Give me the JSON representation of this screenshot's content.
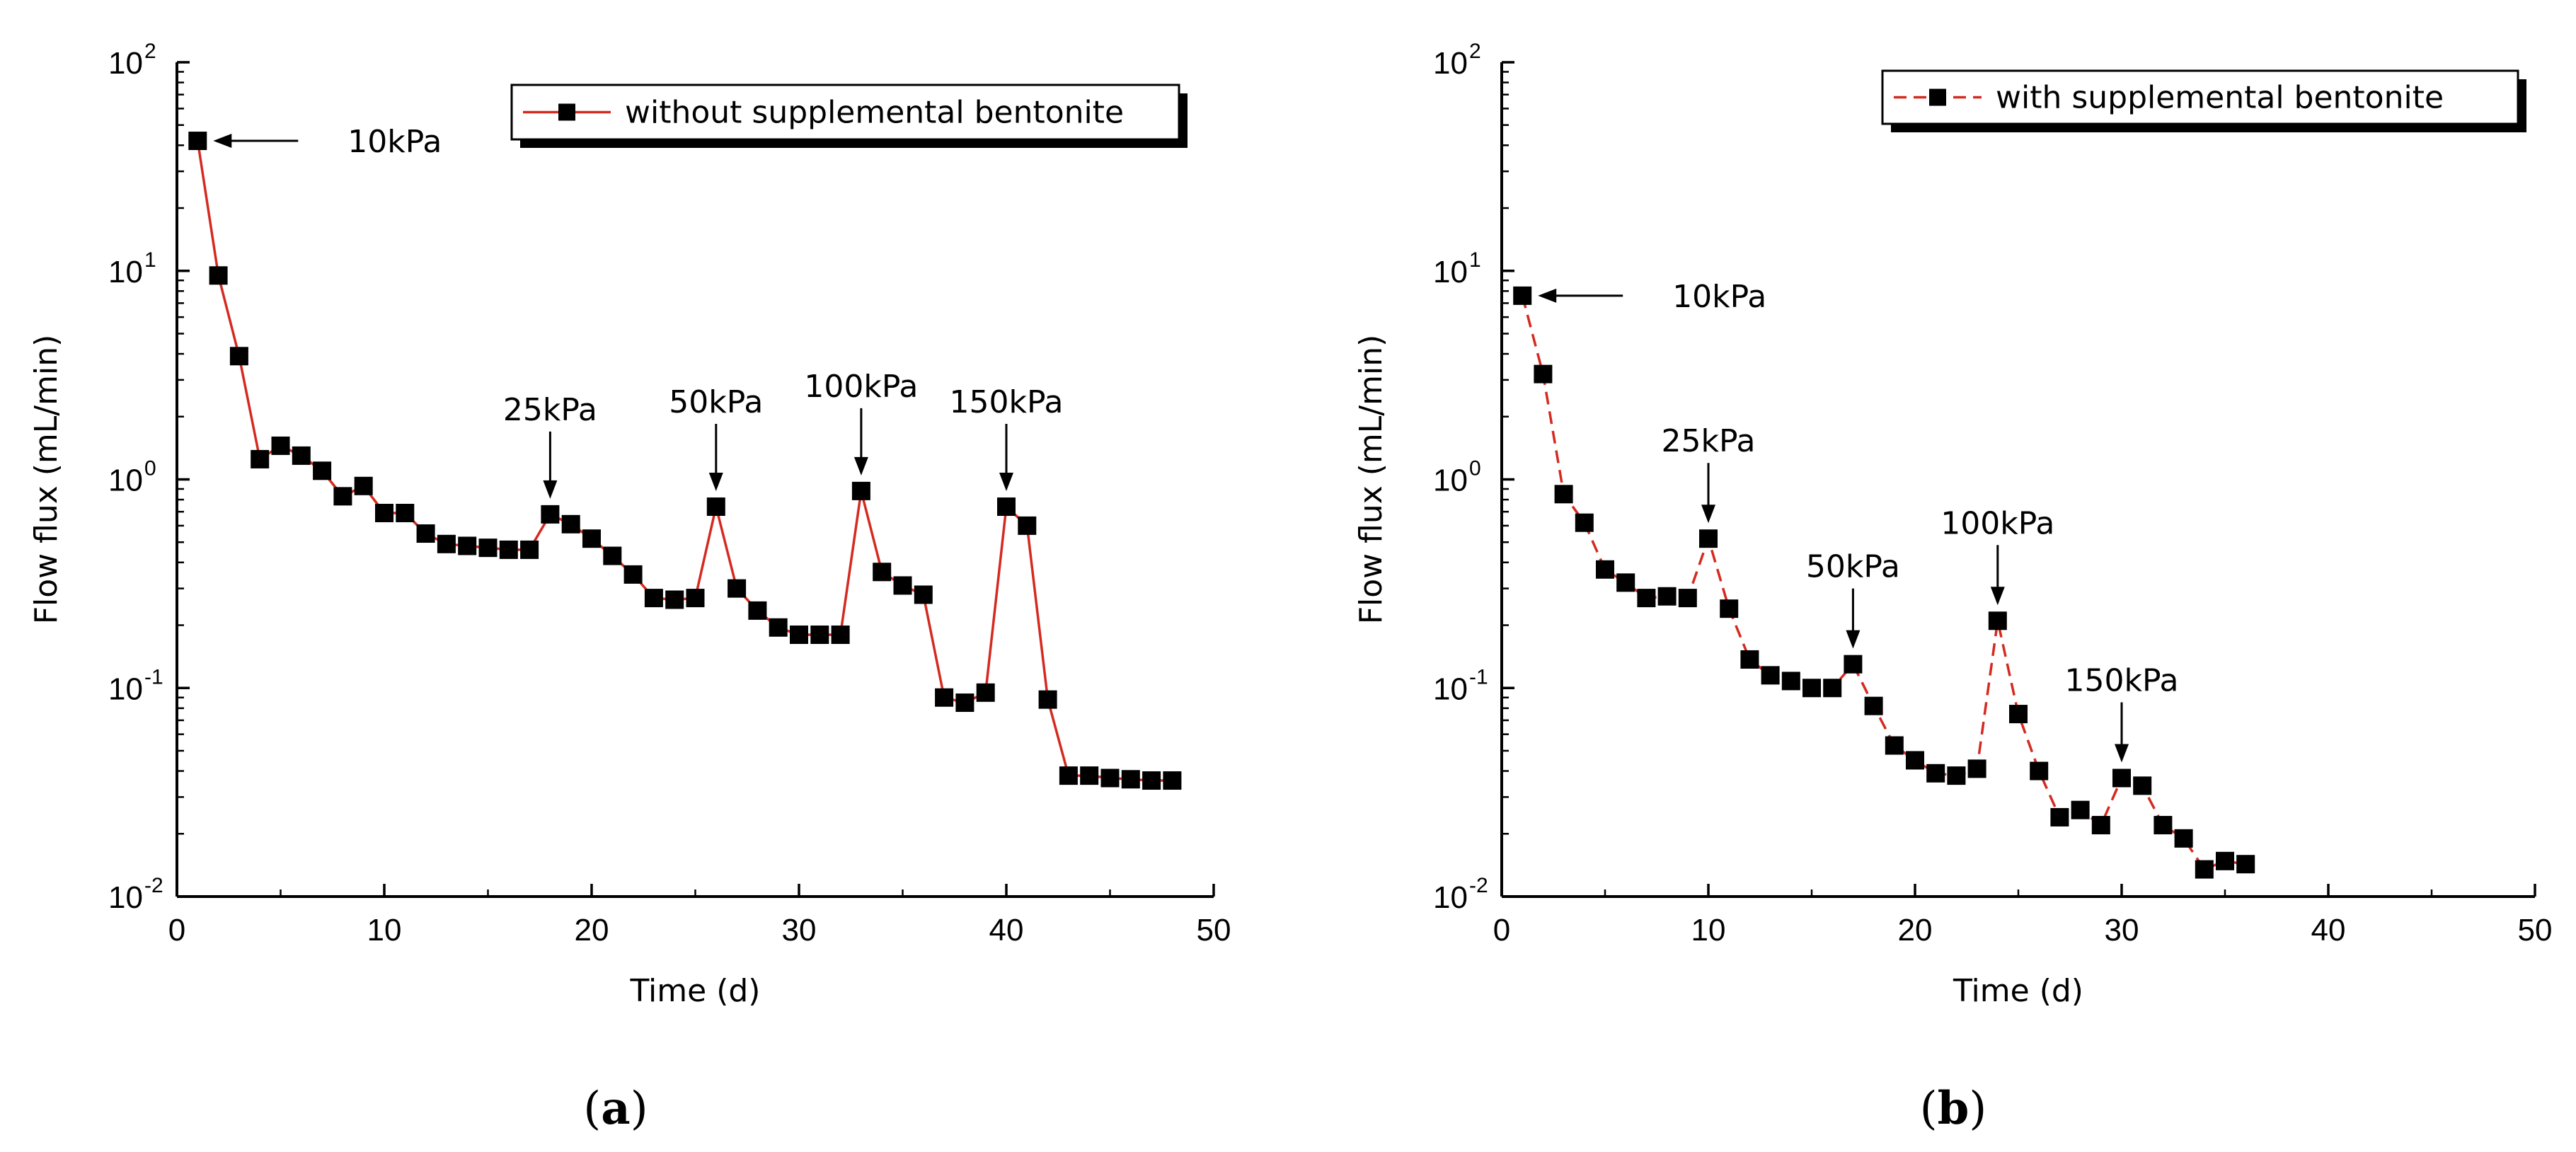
{
  "chart_data": [
    {
      "type": "line",
      "panel_label": "a",
      "title": "",
      "xlabel": "Time (d)",
      "ylabel": "Flow flux (mL/min)",
      "xlim": [
        0,
        50
      ],
      "xticks": [
        0,
        10,
        20,
        30,
        40,
        50
      ],
      "ylim": [
        0.01,
        100
      ],
      "yscale": "log",
      "yticks": [
        {
          "value": 100,
          "base": "10",
          "exp": "2"
        },
        {
          "value": 10,
          "base": "10",
          "exp": "1"
        },
        {
          "value": 1,
          "base": "10",
          "exp": "0"
        },
        {
          "value": 0.1,
          "base": "10",
          "exp": "-1"
        },
        {
          "value": 0.01,
          "base": "10",
          "exp": "-2"
        }
      ],
      "legend_position": "top-right",
      "series": [
        {
          "name": "without supplemental bentonite",
          "color": "#d42a20",
          "line_style": "solid",
          "x": [
            1,
            2,
            3,
            4,
            5,
            6,
            7,
            8,
            9,
            10,
            11,
            12,
            13,
            14,
            15,
            16,
            17,
            18,
            19,
            20,
            21,
            22,
            23,
            24,
            25,
            26,
            27,
            28,
            29,
            30,
            31,
            32,
            33,
            34,
            35,
            36,
            37,
            38,
            39,
            40,
            41,
            42,
            43,
            44,
            45,
            46,
            47,
            48
          ],
          "y": [
            42,
            9.5,
            3.9,
            1.25,
            1.45,
            1.3,
            1.1,
            0.83,
            0.93,
            0.69,
            0.69,
            0.55,
            0.49,
            0.48,
            0.47,
            0.46,
            0.46,
            0.68,
            0.61,
            0.52,
            0.43,
            0.35,
            0.27,
            0.265,
            0.27,
            0.74,
            0.3,
            0.235,
            0.195,
            0.18,
            0.18,
            0.18,
            0.88,
            0.36,
            0.31,
            0.28,
            0.09,
            0.085,
            0.095,
            0.74,
            0.6,
            0.088,
            0.038,
            0.038,
            0.037,
            0.0365,
            0.036,
            0.036
          ]
        }
      ],
      "annotations": [
        {
          "text": "10kPa",
          "x": 1,
          "y": 42
        },
        {
          "text": "25kPa",
          "x": 18,
          "y": 0.68
        },
        {
          "text": "50kPa",
          "x": 26,
          "y": 0.74
        },
        {
          "text": "100kPa",
          "x": 33,
          "y": 0.88
        },
        {
          "text": "150kPa",
          "x": 40,
          "y": 0.74
        }
      ]
    },
    {
      "type": "line",
      "panel_label": "b",
      "title": "",
      "xlabel": "Time (d)",
      "ylabel": "Flow flux (mL/min)",
      "xlim": [
        0,
        50
      ],
      "xticks": [
        0,
        10,
        20,
        30,
        40,
        50
      ],
      "ylim": [
        0.01,
        100
      ],
      "yscale": "log",
      "yticks": [
        {
          "value": 100,
          "base": "10",
          "exp": "2"
        },
        {
          "value": 10,
          "base": "10",
          "exp": "1"
        },
        {
          "value": 1,
          "base": "10",
          "exp": "0"
        },
        {
          "value": 0.1,
          "base": "10",
          "exp": "-1"
        },
        {
          "value": 0.01,
          "base": "10",
          "exp": "-2"
        }
      ],
      "legend_position": "top-right",
      "series": [
        {
          "name": "with supplemental bentonite",
          "color": "#d42a20",
          "line_style": "dashed",
          "x": [
            1,
            2,
            3,
            4,
            5,
            6,
            7,
            8,
            9,
            10,
            11,
            12,
            13,
            14,
            15,
            16,
            17,
            18,
            19,
            20,
            21,
            22,
            23,
            24,
            25,
            26,
            27,
            28,
            29,
            30,
            31,
            32,
            33,
            34,
            35,
            36
          ],
          "y": [
            7.6,
            3.2,
            0.85,
            0.62,
            0.37,
            0.32,
            0.27,
            0.275,
            0.27,
            0.52,
            0.24,
            0.137,
            0.115,
            0.108,
            0.1,
            0.1,
            0.13,
            0.082,
            0.053,
            0.045,
            0.039,
            0.038,
            0.041,
            0.21,
            0.075,
            0.04,
            0.024,
            0.026,
            0.022,
            0.037,
            0.034,
            0.022,
            0.019,
            0.0135,
            0.0148,
            0.0143
          ]
        }
      ],
      "annotations": [
        {
          "text": "10kPa",
          "x": 1,
          "y": 7.6
        },
        {
          "text": "25kPa",
          "x": 10,
          "y": 0.52
        },
        {
          "text": "50kPa",
          "x": 17,
          "y": 0.13
        },
        {
          "text": "100kPa",
          "x": 24,
          "y": 0.21
        },
        {
          "text": "150kPa",
          "x": 30,
          "y": 0.037
        }
      ]
    }
  ],
  "panel_labels": {
    "a": {
      "open": "(",
      "letter": "a",
      "close": ")"
    },
    "b": {
      "open": "(",
      "letter": "b",
      "close": ")"
    }
  }
}
